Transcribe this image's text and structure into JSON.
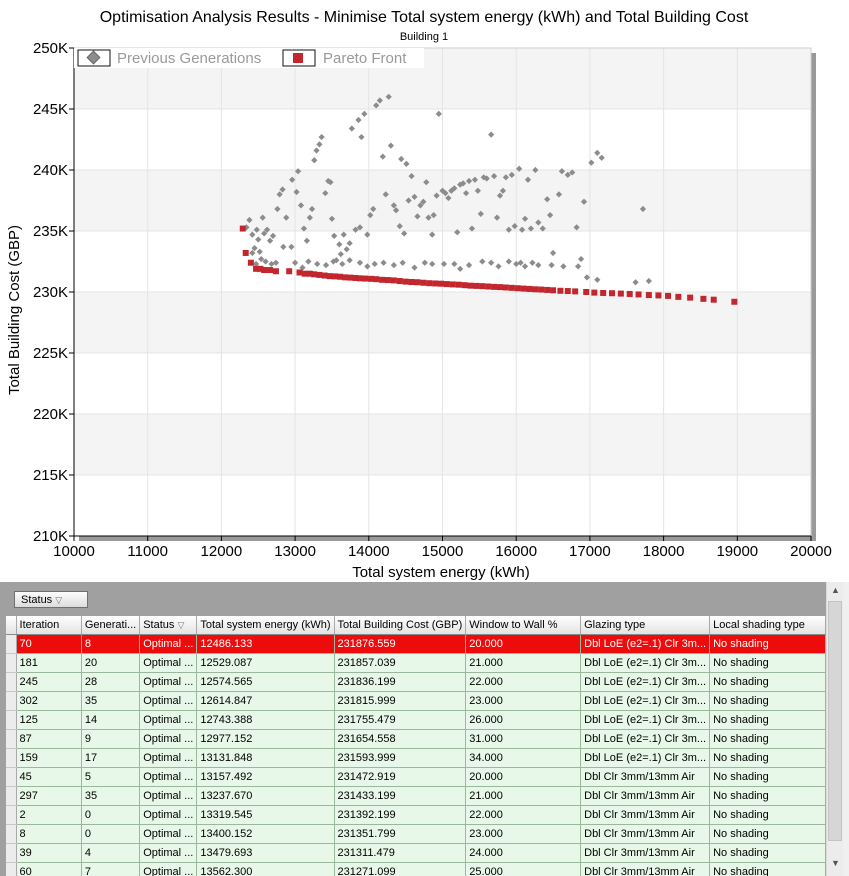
{
  "chart_data": {
    "type": "scatter",
    "title": "Optimisation Analysis Results - Minimise Total system energy (kWh) and Total Building Cost",
    "subtitle": "Building 1",
    "xlabel": "Total system energy (kWh)",
    "ylabel": "Total Building Cost (GBP)",
    "xlim": [
      10000,
      20000
    ],
    "ylim": [
      210000,
      250000
    ],
    "x_ticks": [
      "10000",
      "11000",
      "12000",
      "13000",
      "14000",
      "15000",
      "16000",
      "17000",
      "18000",
      "19000",
      "20000"
    ],
    "y_ticks": [
      "210K",
      "215K",
      "220K",
      "225K",
      "230K",
      "235K",
      "240K",
      "245K",
      "250K"
    ],
    "legend_position": "top-left",
    "series": [
      {
        "name": "Previous Generations",
        "marker": "diamond",
        "color": "#8c8c8c",
        "points": [
          [
            12340,
            235300
          ],
          [
            12380,
            235900
          ],
          [
            12420,
            234700
          ],
          [
            12450,
            233600
          ],
          [
            12480,
            235100
          ],
          [
            12500,
            234300
          ],
          [
            12520,
            233300
          ],
          [
            12560,
            236100
          ],
          [
            12580,
            234800
          ],
          [
            12620,
            235100
          ],
          [
            12660,
            234200
          ],
          [
            12700,
            234600
          ],
          [
            12760,
            236800
          ],
          [
            12790,
            238000
          ],
          [
            12830,
            238400
          ],
          [
            12880,
            236100
          ],
          [
            12420,
            233200
          ],
          [
            12470,
            232300
          ],
          [
            12540,
            232700
          ],
          [
            12600,
            232500
          ],
          [
            12680,
            232300
          ],
          [
            12740,
            232400
          ],
          [
            12840,
            233700
          ],
          [
            12950,
            233700
          ],
          [
            12960,
            239200
          ],
          [
            13020,
            238200
          ],
          [
            13040,
            239900
          ],
          [
            13080,
            237100
          ],
          [
            13120,
            235200
          ],
          [
            13160,
            234200
          ],
          [
            13200,
            236100
          ],
          [
            13230,
            236800
          ],
          [
            13260,
            240800
          ],
          [
            13290,
            241600
          ],
          [
            13330,
            242100
          ],
          [
            13360,
            242700
          ],
          [
            13410,
            238100
          ],
          [
            13450,
            239100
          ],
          [
            13480,
            239000
          ],
          [
            13500,
            236000
          ],
          [
            13530,
            234600
          ],
          [
            13560,
            232600
          ],
          [
            13600,
            233900
          ],
          [
            13620,
            233100
          ],
          [
            13660,
            234700
          ],
          [
            13700,
            233500
          ],
          [
            13740,
            234000
          ],
          [
            13770,
            243400
          ],
          [
            13820,
            235100
          ],
          [
            13860,
            244100
          ],
          [
            13880,
            235300
          ],
          [
            13900,
            242700
          ],
          [
            13940,
            244600
          ],
          [
            13980,
            234700
          ],
          [
            14020,
            236300
          ],
          [
            14060,
            236800
          ],
          [
            14100,
            245300
          ],
          [
            14150,
            245700
          ],
          [
            14190,
            241100
          ],
          [
            14230,
            238000
          ],
          [
            14270,
            246000
          ],
          [
            14300,
            242000
          ],
          [
            14340,
            237100
          ],
          [
            14370,
            236700
          ],
          [
            14420,
            235400
          ],
          [
            14440,
            240900
          ],
          [
            14480,
            234800
          ],
          [
            14510,
            240500
          ],
          [
            14540,
            237500
          ],
          [
            14580,
            239500
          ],
          [
            14620,
            237800
          ],
          [
            14660,
            236200
          ],
          [
            14700,
            237100
          ],
          [
            14740,
            237400
          ],
          [
            14780,
            239000
          ],
          [
            14810,
            236100
          ],
          [
            14860,
            234700
          ],
          [
            14880,
            236300
          ],
          [
            14920,
            237900
          ],
          [
            14950,
            244600
          ],
          [
            15000,
            238300
          ],
          [
            15040,
            238100
          ],
          [
            15080,
            237700
          ],
          [
            15120,
            238300
          ],
          [
            15160,
            238500
          ],
          [
            15200,
            234900
          ],
          [
            15240,
            238800
          ],
          [
            15280,
            238900
          ],
          [
            15320,
            238100
          ],
          [
            15360,
            239100
          ],
          [
            15400,
            235200
          ],
          [
            15440,
            239200
          ],
          [
            15480,
            238300
          ],
          [
            15520,
            236400
          ],
          [
            15560,
            239400
          ],
          [
            15600,
            239300
          ],
          [
            15660,
            242900
          ],
          [
            15700,
            239500
          ],
          [
            15740,
            236100
          ],
          [
            15780,
            237900
          ],
          [
            15820,
            238300
          ],
          [
            15860,
            239400
          ],
          [
            15900,
            235100
          ],
          [
            15940,
            239600
          ],
          [
            15980,
            235400
          ],
          [
            16040,
            240100
          ],
          [
            16080,
            235100
          ],
          [
            16120,
            236000
          ],
          [
            16160,
            239200
          ],
          [
            16200,
            235200
          ],
          [
            16260,
            240000
          ],
          [
            16300,
            235700
          ],
          [
            16360,
            235200
          ],
          [
            16420,
            237600
          ],
          [
            16460,
            236300
          ],
          [
            16500,
            233200
          ],
          [
            16580,
            238000
          ],
          [
            16620,
            239900
          ],
          [
            16700,
            239600
          ],
          [
            16760,
            239800
          ],
          [
            16820,
            235300
          ],
          [
            16880,
            232700
          ],
          [
            16920,
            237400
          ],
          [
            17020,
            240600
          ],
          [
            17100,
            241400
          ],
          [
            17160,
            241000
          ],
          [
            17720,
            236800
          ],
          [
            17800,
            230900
          ],
          [
            17620,
            230800
          ],
          [
            13000,
            232400
          ],
          [
            13100,
            232000
          ],
          [
            13180,
            232500
          ],
          [
            13300,
            232300
          ],
          [
            13420,
            232200
          ],
          [
            13520,
            232500
          ],
          [
            13640,
            232300
          ],
          [
            13740,
            232600
          ],
          [
            13880,
            232400
          ],
          [
            13980,
            232100
          ],
          [
            14080,
            232300
          ],
          [
            14200,
            232400
          ],
          [
            14340,
            232200
          ],
          [
            14460,
            232400
          ],
          [
            14620,
            232000
          ],
          [
            14760,
            232400
          ],
          [
            14860,
            232300
          ],
          [
            15020,
            232300
          ],
          [
            15160,
            232300
          ],
          [
            15240,
            231900
          ],
          [
            15360,
            232200
          ],
          [
            15540,
            232500
          ],
          [
            15660,
            232400
          ],
          [
            15760,
            232100
          ],
          [
            15900,
            232500
          ],
          [
            16000,
            232300
          ],
          [
            16060,
            232400
          ],
          [
            16120,
            232100
          ],
          [
            16220,
            232400
          ],
          [
            16300,
            232200
          ],
          [
            16480,
            232200
          ],
          [
            16640,
            232100
          ],
          [
            16840,
            232100
          ],
          [
            16960,
            231200
          ],
          [
            17100,
            231000
          ]
        ]
      },
      {
        "name": "Pareto Front",
        "marker": "square",
        "color": "#c1272d",
        "points": [
          [
            12290,
            235200
          ],
          [
            12330,
            233200
          ],
          [
            12400,
            232400
          ],
          [
            12470,
            231900
          ],
          [
            12530,
            231900
          ],
          [
            12580,
            231800
          ],
          [
            12660,
            231800
          ],
          [
            12740,
            231700
          ],
          [
            12920,
            231700
          ],
          [
            13060,
            231600
          ],
          [
            13130,
            231500
          ],
          [
            13200,
            231500
          ],
          [
            13260,
            231450
          ],
          [
            13330,
            231400
          ],
          [
            13400,
            231350
          ],
          [
            13470,
            231300
          ],
          [
            13540,
            231280
          ],
          [
            13610,
            231250
          ],
          [
            13680,
            231200
          ],
          [
            13750,
            231180
          ],
          [
            13820,
            231150
          ],
          [
            13880,
            231120
          ],
          [
            13950,
            231100
          ],
          [
            14030,
            231080
          ],
          [
            14100,
            231050
          ],
          [
            14180,
            231000
          ],
          [
            14260,
            230980
          ],
          [
            14340,
            230950
          ],
          [
            14420,
            230900
          ],
          [
            14500,
            230850
          ],
          [
            14580,
            230820
          ],
          [
            14660,
            230800
          ],
          [
            14740,
            230760
          ],
          [
            14820,
            230720
          ],
          [
            14900,
            230700
          ],
          [
            14980,
            230680
          ],
          [
            15060,
            230650
          ],
          [
            15140,
            230620
          ],
          [
            15220,
            230600
          ],
          [
            15300,
            230560
          ],
          [
            15380,
            230520
          ],
          [
            15460,
            230500
          ],
          [
            15540,
            230480
          ],
          [
            15620,
            230450
          ],
          [
            15700,
            230420
          ],
          [
            15780,
            230400
          ],
          [
            15860,
            230370
          ],
          [
            15940,
            230340
          ],
          [
            16020,
            230310
          ],
          [
            16100,
            230280
          ],
          [
            16180,
            230250
          ],
          [
            16260,
            230220
          ],
          [
            16340,
            230200
          ],
          [
            16420,
            230170
          ],
          [
            16500,
            230140
          ],
          [
            16600,
            230100
          ],
          [
            16700,
            230080
          ],
          [
            16800,
            230050
          ],
          [
            16950,
            230000
          ],
          [
            17060,
            229950
          ],
          [
            17180,
            229920
          ],
          [
            17300,
            229900
          ],
          [
            17420,
            229870
          ],
          [
            17540,
            229840
          ],
          [
            17660,
            229800
          ],
          [
            17800,
            229750
          ],
          [
            17930,
            229720
          ],
          [
            18060,
            229680
          ],
          [
            18200,
            229600
          ],
          [
            18360,
            229540
          ],
          [
            18540,
            229440
          ],
          [
            18680,
            229370
          ],
          [
            18960,
            229200
          ]
        ]
      }
    ]
  },
  "grid": {
    "group_chip_label": "Status",
    "group_chip_icon": "filter-icon",
    "columns": [
      "Iteration",
      "Generation",
      "Status",
      "Total system energy (kWh)",
      "Total Building Cost (GBP)",
      "Window to Wall %",
      "Glazing type",
      "Local shading type"
    ],
    "column_display": [
      "Iteration",
      "Generati...",
      "Status",
      "Total system energy (kWh)",
      "Total Building Cost (GBP)",
      "Window to Wall %",
      "Glazing type",
      "Local shading type"
    ],
    "status_sort_icon": "filter-icon",
    "selected_row_index": 0,
    "rows": [
      [
        "70",
        "8",
        "Optimal ...",
        "12486.133",
        "231876.559",
        "20.000",
        "Dbl LoE (e2=.1) Clr 3m...",
        "No shading"
      ],
      [
        "181",
        "20",
        "Optimal ...",
        "12529.087",
        "231857.039",
        "21.000",
        "Dbl LoE (e2=.1) Clr 3m...",
        "No shading"
      ],
      [
        "245",
        "28",
        "Optimal ...",
        "12574.565",
        "231836.199",
        "22.000",
        "Dbl LoE (e2=.1) Clr 3m...",
        "No shading"
      ],
      [
        "302",
        "35",
        "Optimal ...",
        "12614.847",
        "231815.999",
        "23.000",
        "Dbl LoE (e2=.1) Clr 3m...",
        "No shading"
      ],
      [
        "125",
        "14",
        "Optimal ...",
        "12743.388",
        "231755.479",
        "26.000",
        "Dbl LoE (e2=.1) Clr 3m...",
        "No shading"
      ],
      [
        "87",
        "9",
        "Optimal ...",
        "12977.152",
        "231654.558",
        "31.000",
        "Dbl LoE (e2=.1) Clr 3m...",
        "No shading"
      ],
      [
        "159",
        "17",
        "Optimal ...",
        "13131.848",
        "231593.999",
        "34.000",
        "Dbl LoE (e2=.1) Clr 3m...",
        "No shading"
      ],
      [
        "45",
        "5",
        "Optimal ...",
        "13157.492",
        "231472.919",
        "20.000",
        "Dbl Clr 3mm/13mm Air",
        "No shading"
      ],
      [
        "297",
        "35",
        "Optimal ...",
        "13237.670",
        "231433.199",
        "21.000",
        "Dbl Clr 3mm/13mm Air",
        "No shading"
      ],
      [
        "2",
        "0",
        "Optimal ...",
        "13319.545",
        "231392.199",
        "22.000",
        "Dbl Clr 3mm/13mm Air",
        "No shading"
      ],
      [
        "8",
        "0",
        "Optimal ...",
        "13400.152",
        "231351.799",
        "23.000",
        "Dbl Clr 3mm/13mm Air",
        "No shading"
      ],
      [
        "39",
        "4",
        "Optimal ...",
        "13479.693",
        "231311.479",
        "24.000",
        "Dbl Clr 3mm/13mm Air",
        "No shading"
      ],
      [
        "60",
        "7",
        "Optimal ...",
        "13562.300",
        "231271.099",
        "25.000",
        "Dbl Clr 3mm/13mm Air",
        "No shading"
      ]
    ]
  }
}
